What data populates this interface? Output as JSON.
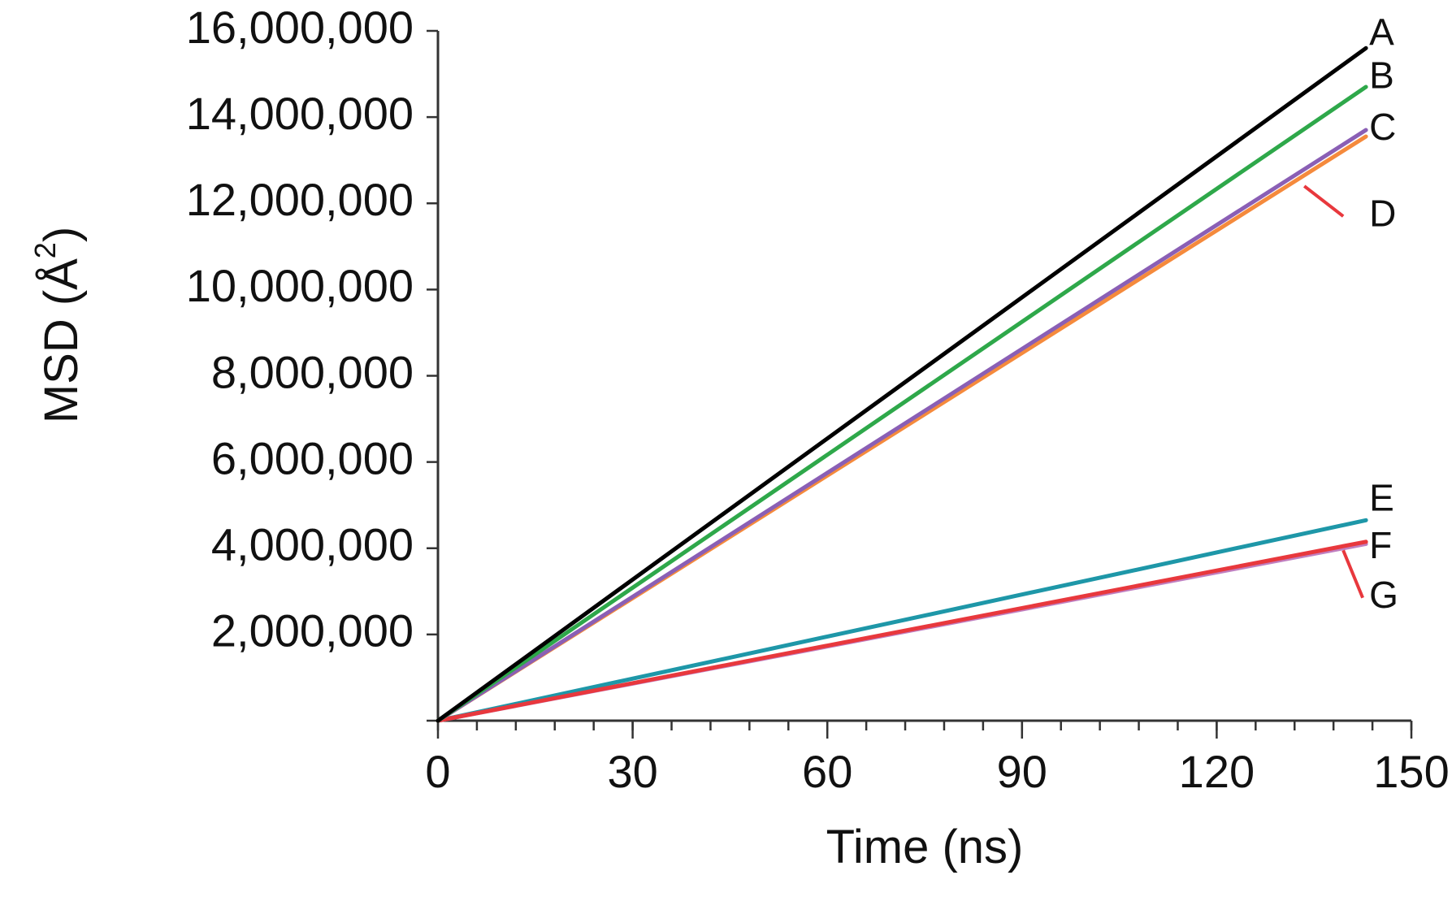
{
  "chart_data": {
    "type": "line",
    "title": "",
    "xlabel": "Time (ns)",
    "ylabel_main": "MSD (Å",
    "ylabel_sup": "2",
    "ylabel_close": ")",
    "xlim": [
      0,
      150
    ],
    "ylim": [
      0,
      16000000
    ],
    "xticks": [
      0,
      30,
      60,
      90,
      120,
      150
    ],
    "xtick_labels": [
      "0",
      "30",
      "60",
      "90",
      "120",
      "150"
    ],
    "x_minor_step": 6,
    "yticks": [
      2000000,
      4000000,
      6000000,
      8000000,
      10000000,
      12000000,
      14000000,
      16000000
    ],
    "ytick_labels": [
      "2,000,000",
      "4,000,000",
      "6,000,000",
      "8,000,000",
      "10,000,000",
      "12,000,000",
      "14,000,000",
      "16,000,000"
    ],
    "grid": false,
    "series": [
      {
        "name": "A",
        "color": "#000000",
        "x": [
          0,
          143
        ],
        "y": [
          0,
          15600000
        ]
      },
      {
        "name": "B",
        "color": "#2ea84a",
        "x": [
          0,
          143
        ],
        "y": [
          0,
          14700000
        ]
      },
      {
        "name": "C",
        "color": "#8a5fb5",
        "x": [
          0,
          143
        ],
        "y": [
          0,
          13700000
        ]
      },
      {
        "name": "D",
        "color": "#f58a3c",
        "x": [
          0,
          143
        ],
        "y": [
          0,
          13550000
        ]
      },
      {
        "name": "E",
        "color": "#1e97a8",
        "x": [
          0,
          143
        ],
        "y": [
          0,
          4650000
        ]
      },
      {
        "name": "F",
        "color": "#c07fc0",
        "x": [
          0,
          143
        ],
        "y": [
          0,
          4100000
        ]
      },
      {
        "name": "G",
        "color": "#e8383d",
        "x": [
          0,
          143
        ],
        "y": [
          0,
          4150000
        ]
      }
    ],
    "annotations": [
      {
        "text": "A",
        "x": 143.5,
        "y": 15900000,
        "leader": false
      },
      {
        "text": "B",
        "x": 143.5,
        "y": 14900000,
        "leader": false
      },
      {
        "text": "C",
        "x": 143.5,
        "y": 13700000,
        "leader": false
      },
      {
        "text": "D",
        "x": 143.5,
        "y": 11700000,
        "leader": true,
        "leader_color": "#e8383d",
        "leader_from": [
          133.5,
          12400000
        ],
        "leader_to": [
          139.5,
          11700000
        ]
      },
      {
        "text": "E",
        "x": 143.5,
        "y": 5100000,
        "leader": false
      },
      {
        "text": "F",
        "x": 143.5,
        "y": 4000000,
        "leader": false
      },
      {
        "text": "G",
        "x": 143.5,
        "y": 2850000,
        "leader": true,
        "leader_color": "#e8383d",
        "leader_from": [
          139.5,
          3950000
        ],
        "leader_to": [
          142.5,
          2850000
        ]
      }
    ]
  }
}
